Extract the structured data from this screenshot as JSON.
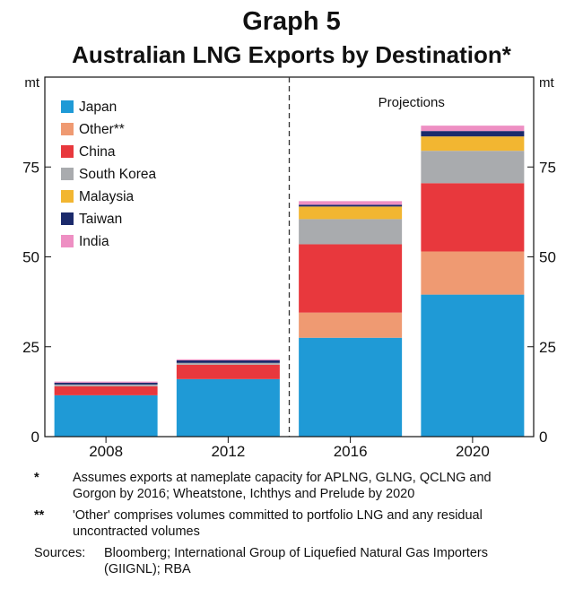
{
  "header": {
    "graph_number": "Graph 5",
    "title": "Australian LNG Exports by Destination*"
  },
  "chart_data": {
    "type": "bar",
    "stacked": true,
    "categories": [
      "2008",
      "2012",
      "2016",
      "2020"
    ],
    "y_unit_left": "mt",
    "y_unit_right": "mt",
    "ylim": [
      0,
      100
    ],
    "yticks": [
      0,
      25,
      50,
      75
    ],
    "grid": false,
    "legend_position": "top-left",
    "annotation": "Projections",
    "series": [
      {
        "name": "Japan",
        "color": "#1f9ad6",
        "values": [
          11.5,
          16,
          27.5,
          39.5
        ]
      },
      {
        "name": "Other**",
        "color": "#ef9a72",
        "values": [
          0,
          0,
          7,
          12
        ]
      },
      {
        "name": "China",
        "color": "#e8383d",
        "values": [
          2.5,
          4,
          19,
          19
        ]
      },
      {
        "name": "South Korea",
        "color": "#a9abae",
        "values": [
          0.5,
          0.5,
          7,
          9
        ]
      },
      {
        "name": "Malaysia",
        "color": "#f2b631",
        "values": [
          0,
          0,
          3.5,
          4
        ]
      },
      {
        "name": "Taiwan",
        "color": "#1b2a6b",
        "values": [
          0.5,
          0.7,
          0.5,
          1.5
        ]
      },
      {
        "name": "India",
        "color": "#ee8fc3",
        "values": [
          0.3,
          0.3,
          1,
          1.5
        ]
      }
    ]
  },
  "notes": {
    "note1_mark": "*",
    "note1_text": "Assumes exports at nameplate capacity for APLNG, GLNG, QCLNG and Gorgon by 2016; Wheatstone, Ichthys and Prelude by 2020",
    "note2_mark": "**",
    "note2_text": "'Other' comprises volumes committed to portfolio LNG and any residual uncontracted volumes",
    "sources_label": "Sources:",
    "sources_text": "Bloomberg; International Group of Liquefied Natural Gas Importers (GIIGNL); RBA"
  }
}
